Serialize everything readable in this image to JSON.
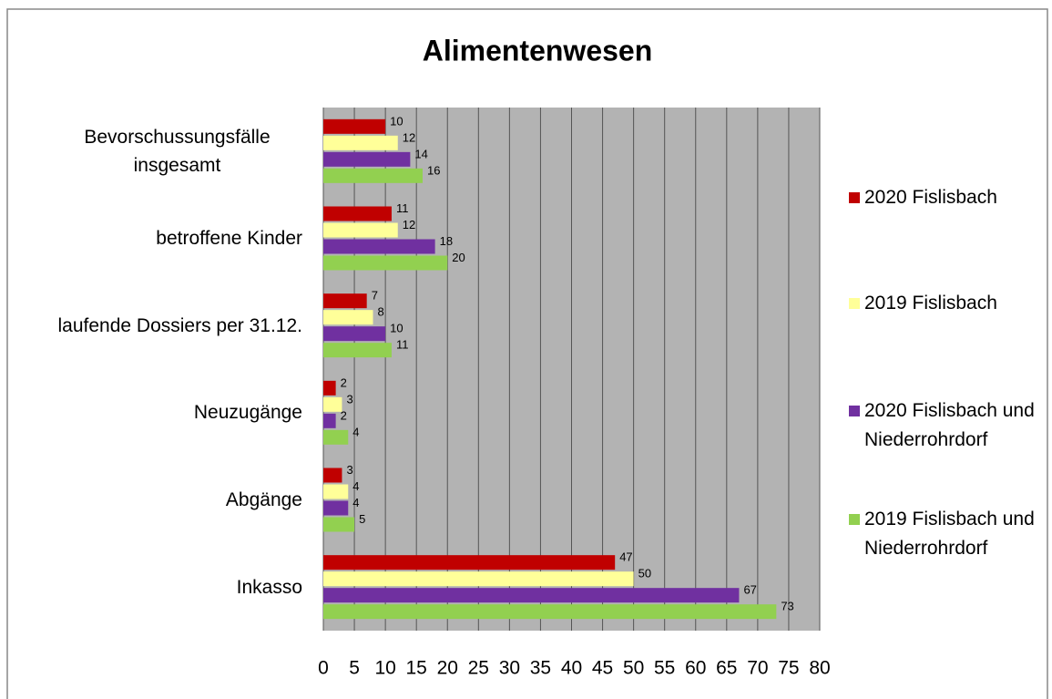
{
  "chart_data": {
    "type": "bar",
    "orientation": "horizontal",
    "title": "Alimentenwesen",
    "categories": [
      "Bevorschussungsfälle insgesamt",
      "betroffene Kinder",
      "laufende Dossiers per 31.12.",
      "Neuzugänge",
      "Abgänge",
      "Inkasso"
    ],
    "series": [
      {
        "name": "2020 Fislisbach",
        "color": "#c00000",
        "values": [
          10,
          11,
          7,
          2,
          3,
          47
        ]
      },
      {
        "name": "2019 Fislisbach",
        "color": "#ffff99",
        "values": [
          12,
          12,
          8,
          3,
          4,
          50
        ]
      },
      {
        "name": "2020 Fislisbach und Niederrohrdorf",
        "color": "#7030a0",
        "values": [
          14,
          18,
          10,
          2,
          4,
          67
        ]
      },
      {
        "name": "2019 Fislisbach und Niederrohrdorf",
        "color": "#92d050",
        "values": [
          16,
          20,
          11,
          4,
          5,
          73
        ]
      }
    ],
    "xlim": [
      0,
      80
    ],
    "xticks": [
      0,
      5,
      10,
      15,
      20,
      25,
      30,
      35,
      40,
      45,
      50,
      55,
      60,
      65,
      70,
      75,
      80
    ],
    "grid": true,
    "plot_background": "#b3b3b3",
    "legend": "right"
  }
}
